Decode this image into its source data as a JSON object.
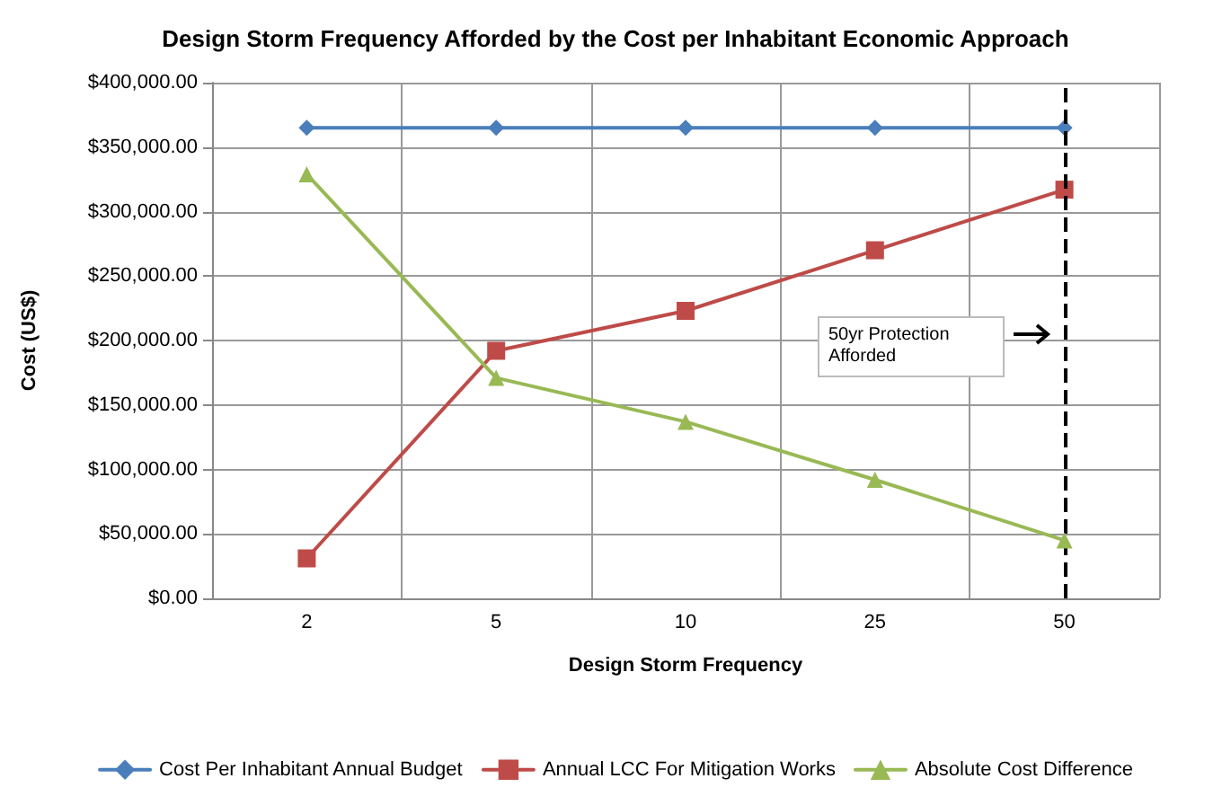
{
  "chart_data": {
    "type": "line",
    "title": "Design Storm Frequency Afforded by the Cost per Inhabitant Economic Approach",
    "xlabel": "Design Storm Frequency",
    "ylabel": "Cost (US$)",
    "categories": [
      "2",
      "5",
      "10",
      "25",
      "50"
    ],
    "series": [
      {
        "name": "Cost Per Inhabitant Annual Budget",
        "color": "#4a7ebb",
        "marker": "diamond",
        "values": [
          365000,
          365000,
          365000,
          365000,
          365000
        ]
      },
      {
        "name": "Annual LCC For Mitigation Works",
        "color": "#be4b48",
        "marker": "square",
        "values": [
          31000,
          192000,
          223000,
          270000,
          317000
        ]
      },
      {
        "name": "Absolute Cost Difference",
        "color": "#98b954",
        "marker": "triangle",
        "values": [
          329000,
          171000,
          137000,
          92000,
          45000
        ]
      }
    ],
    "ylim": [
      0,
      400000
    ],
    "yticks": [
      {
        "value": 0,
        "label": "$0.00"
      },
      {
        "value": 50000,
        "label": "$50,000.00"
      },
      {
        "value": 100000,
        "label": "$100,000.00"
      },
      {
        "value": 150000,
        "label": "$150,000.00"
      },
      {
        "value": 200000,
        "label": "$200,000.00"
      },
      {
        "value": 250000,
        "label": "$250,000.00"
      },
      {
        "value": 300000,
        "label": "$300,000.00"
      },
      {
        "value": 350000,
        "label": "$350,000.00"
      },
      {
        "value": 400000,
        "label": "$400,000.00"
      }
    ],
    "ref_lines": [
      {
        "axis": "x",
        "value": "50",
        "color": "#000000",
        "line_style": "dashed"
      }
    ],
    "annotations": [
      "50yr Protection Afforded"
    ],
    "grid": true,
    "legend": "bottom",
    "line_style": "solid"
  }
}
